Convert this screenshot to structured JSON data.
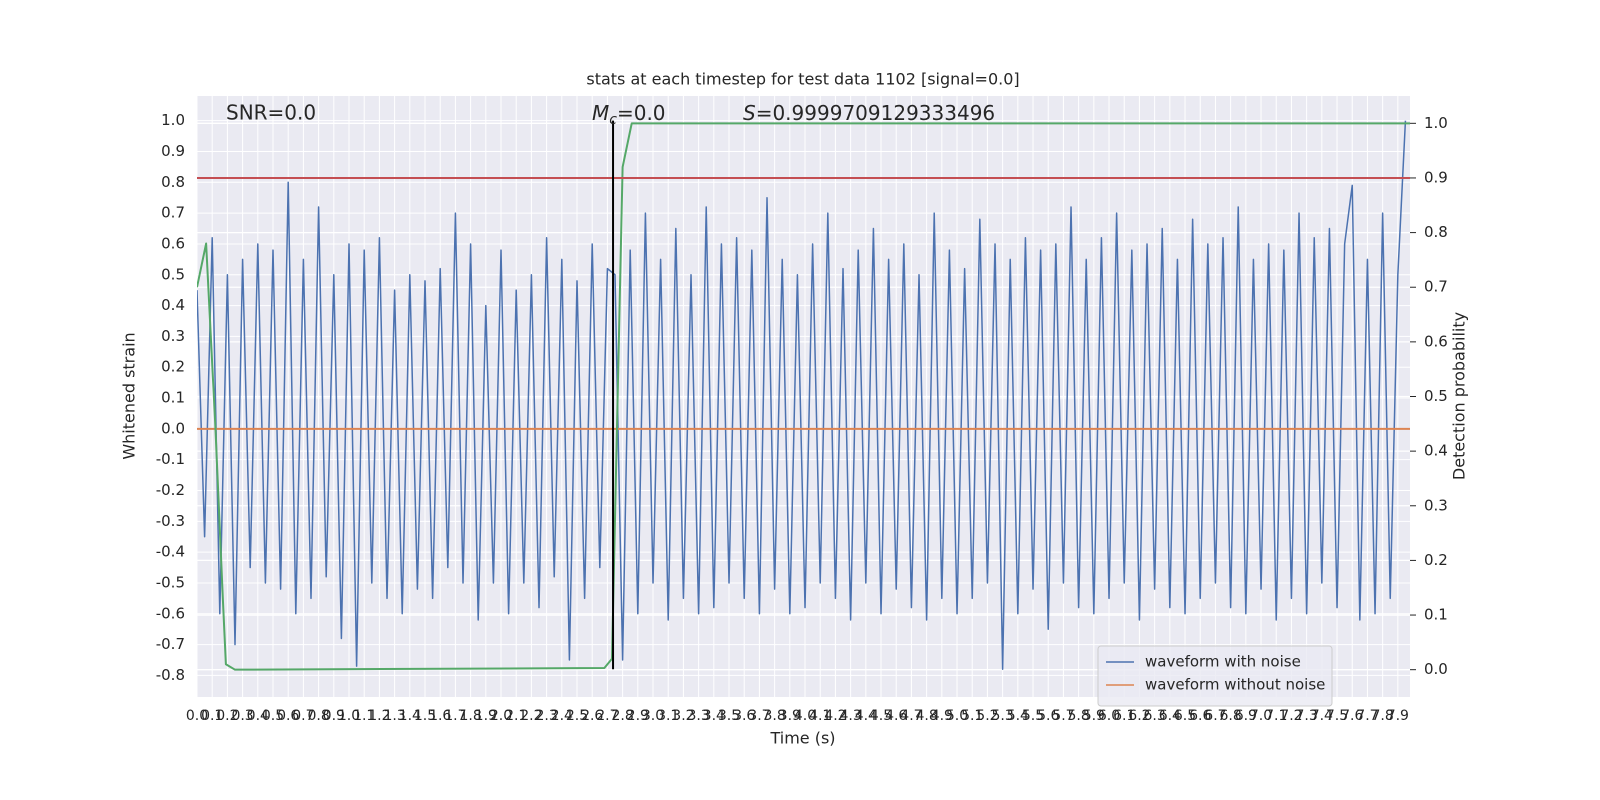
{
  "chart_data": {
    "type": "line",
    "title": "stats at each timestep for test data 1102 [signal=0.0]",
    "x_label": "Time (s)",
    "y_label": "Whitened strain",
    "y2_label": "Detection probability",
    "annotations": [
      "SNR=0.0",
      {
        "symbol": "M",
        "subscript": "c",
        "text": "=0.0"
      },
      {
        "symbol": "S",
        "text": "=0.9999709129333496"
      }
    ],
    "xlim": [
      0,
      7.98
    ],
    "ylim": [
      -0.87,
      1.08
    ],
    "y2lim": [
      -0.05,
      1.05
    ],
    "xticks": [
      {
        "value": 0,
        "label": "0.0"
      },
      0.1,
      0.2,
      0.3,
      0.4,
      0.5,
      0.6,
      0.7,
      0.8,
      0.9,
      {
        "value": 1,
        "label": "1.0"
      },
      1.1,
      1.2,
      1.3,
      1.4,
      1.5,
      1.6,
      1.7,
      1.8,
      1.9,
      {
        "value": 2,
        "label": "2.0"
      },
      2.1,
      2.2,
      2.3,
      2.4,
      2.5,
      2.6,
      2.7,
      2.8,
      2.9,
      {
        "value": 3,
        "label": "3.0"
      },
      3.1,
      3.2,
      3.3,
      3.4,
      3.5,
      3.6,
      3.7,
      3.8,
      3.9,
      {
        "value": 4,
        "label": "4.0"
      },
      4.1,
      4.2,
      4.3,
      4.4,
      4.5,
      4.6,
      4.7,
      4.8,
      4.9,
      {
        "value": 5,
        "label": "5.0"
      },
      5.1,
      5.2,
      5.3,
      5.4,
      5.5,
      5.6,
      5.7,
      5.8,
      5.9,
      {
        "value": 6,
        "label": "6.0"
      },
      6.1,
      6.2,
      6.3,
      6.4,
      6.5,
      6.6,
      6.7,
      6.8,
      6.9,
      {
        "value": 7,
        "label": "7.0"
      },
      7.1,
      7.2,
      7.3,
      7.4,
      7.5,
      7.6,
      7.7,
      7.8,
      7.9
    ],
    "yticks": [
      -0.8,
      -0.7,
      -0.6,
      -0.5,
      -0.4,
      -0.3,
      -0.2,
      -0.1,
      {
        "value": 0,
        "label": "0.0"
      },
      0.1,
      0.2,
      0.3,
      0.4,
      0.5,
      0.6,
      0.7,
      0.8,
      0.9,
      {
        "value": 1,
        "label": "1.0"
      }
    ],
    "y2ticks": [
      {
        "value": 0,
        "label": "0.0"
      },
      0.1,
      0.2,
      0.3,
      0.4,
      0.5,
      0.6,
      0.7,
      0.8,
      0.9,
      {
        "value": 1,
        "label": "1.0"
      }
    ],
    "grid": true,
    "legend": "lower right",
    "series": [
      {
        "name": "waveform with noise",
        "color": "#4c72b0",
        "x": [
          0,
          0.05,
          0.1,
          0.15,
          0.2,
          0.25,
          0.3,
          0.35,
          0.4,
          0.45,
          0.5,
          0.55,
          0.6,
          0.65,
          0.7,
          0.75,
          0.8,
          0.85,
          0.9,
          0.95,
          1,
          1.05,
          1.1,
          1.15,
          1.2,
          1.25,
          1.3,
          1.35,
          1.4,
          1.45,
          1.5,
          1.55,
          1.6,
          1.65,
          1.7,
          1.75,
          1.8,
          1.85,
          1.9,
          1.95,
          2,
          2.05,
          2.1,
          2.15,
          2.2,
          2.25,
          2.3,
          2.35,
          2.4,
          2.45,
          2.5,
          2.55,
          2.6,
          2.65,
          2.7,
          2.75,
          2.8,
          2.85,
          2.9,
          2.95,
          3,
          3.05,
          3.1,
          3.15,
          3.2,
          3.25,
          3.3,
          3.35,
          3.4,
          3.45,
          3.5,
          3.55,
          3.6,
          3.65,
          3.7,
          3.75,
          3.8,
          3.85,
          3.9,
          3.95,
          4,
          4.05,
          4.1,
          4.15,
          4.2,
          4.25,
          4.3,
          4.35,
          4.4,
          4.45,
          4.5,
          4.55,
          4.6,
          4.65,
          4.7,
          4.75,
          4.8,
          4.85,
          4.9,
          4.95,
          5,
          5.05,
          5.1,
          5.15,
          5.2,
          5.25,
          5.3,
          5.35,
          5.4,
          5.45,
          5.5,
          5.55,
          5.6,
          5.65,
          5.7,
          5.75,
          5.8,
          5.85,
          5.9,
          5.95,
          6,
          6.05,
          6.1,
          6.15,
          6.2,
          6.25,
          6.3,
          6.35,
          6.4,
          6.45,
          6.5,
          6.55,
          6.6,
          6.65,
          6.7,
          6.75,
          6.8,
          6.85,
          6.9,
          6.95,
          7,
          7.05,
          7.1,
          7.15,
          7.2,
          7.25,
          7.3,
          7.35,
          7.4,
          7.45,
          7.5,
          7.55,
          7.6,
          7.65,
          7.7,
          7.75,
          7.8,
          7.85,
          7.9,
          7.95
        ],
        "values": [
          0.45,
          -0.35,
          0.62,
          -0.6,
          0.5,
          -0.7,
          0.55,
          -0.45,
          0.6,
          -0.5,
          0.58,
          -0.52,
          0.8,
          -0.6,
          0.55,
          -0.55,
          0.72,
          -0.48,
          0.5,
          -0.68,
          0.6,
          -0.77,
          0.58,
          -0.5,
          0.62,
          -0.55,
          0.45,
          -0.6,
          0.5,
          -0.52,
          0.48,
          -0.55,
          0.52,
          -0.45,
          0.7,
          -0.5,
          0.6,
          -0.62,
          0.4,
          -0.5,
          0.58,
          -0.6,
          0.45,
          -0.5,
          0.5,
          -0.58,
          0.62,
          -0.48,
          0.55,
          -0.75,
          0.48,
          -0.55,
          0.6,
          -0.45,
          0.52,
          0.5,
          -0.75,
          0.58,
          -0.6,
          0.7,
          -0.5,
          0.55,
          -0.62,
          0.65,
          -0.55,
          0.5,
          -0.6,
          0.72,
          -0.58,
          0.6,
          -0.5,
          0.62,
          -0.55,
          0.58,
          -0.6,
          0.75,
          -0.52,
          0.55,
          -0.6,
          0.5,
          -0.58,
          0.6,
          -0.5,
          0.7,
          -0.55,
          0.52,
          -0.62,
          0.58,
          -0.5,
          0.65,
          -0.6,
          0.55,
          -0.52,
          0.6,
          -0.58,
          0.5,
          -0.62,
          0.7,
          -0.55,
          0.58,
          -0.6,
          0.52,
          -0.55,
          0.68,
          -0.5,
          0.6,
          -0.78,
          0.55,
          -0.6,
          0.62,
          -0.52,
          0.58,
          -0.65,
          0.6,
          -0.5,
          0.72,
          -0.58,
          0.55,
          -0.6,
          0.62,
          -0.55,
          0.7,
          -0.5,
          0.58,
          -0.62,
          0.6,
          -0.52,
          0.65,
          -0.58,
          0.55,
          -0.6,
          0.68,
          -0.55,
          0.6,
          -0.5,
          0.62,
          -0.58,
          0.72,
          -0.6,
          0.55,
          -0.52,
          0.6,
          -0.62,
          0.58,
          -0.55,
          0.7,
          -0.6,
          0.62,
          -0.5,
          0.65,
          -0.58,
          0.6,
          0.79,
          -0.62,
          0.55,
          -0.6,
          0.7,
          -0.55,
          0.5,
          1.0
        ]
      },
      {
        "name": "waveform without noise",
        "color": "#dd8452",
        "x": [
          0,
          7.98
        ],
        "values": [
          0,
          0
        ]
      },
      {
        "color": "#55a868",
        "axis": "y2",
        "x": [
          0,
          0.06,
          0.12,
          0.17,
          0.19,
          0.25,
          2.68,
          2.73,
          2.8,
          2.86,
          7.98
        ],
        "values": [
          0.7,
          0.78,
          0.45,
          0.13,
          0.01,
          0,
          0.003,
          0.02,
          0.92,
          1.0,
          1.0
        ]
      },
      {
        "color": "#c44e52",
        "axis": "y2",
        "x": [
          0,
          7.98
        ],
        "values": [
          0.9,
          0.9
        ]
      },
      {
        "color": "#000000",
        "x": [
          2.737,
          2.737
        ],
        "values": [
          -0.78,
          1.0
        ]
      }
    ]
  }
}
